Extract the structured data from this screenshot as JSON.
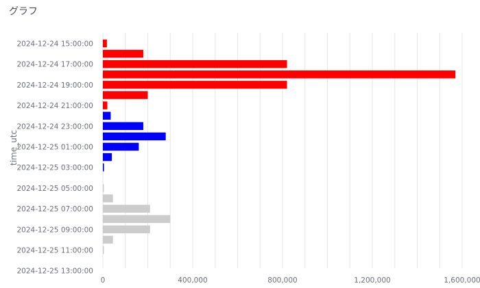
{
  "panel": {
    "title": "グラフ"
  },
  "chart_data": {
    "type": "bar",
    "orientation": "horizontal",
    "ylabel": "time_utc",
    "xlabel": "",
    "xlim": [
      0,
      1600000
    ],
    "x_ticks": [
      {
        "value": 0,
        "label": "0"
      },
      {
        "value": 400000,
        "label": "400,000"
      },
      {
        "value": 800000,
        "label": "800,000"
      },
      {
        "value": 1200000,
        "label": "1,200,000"
      },
      {
        "value": 1600000,
        "label": "1,600,000"
      }
    ],
    "grid": true,
    "categories": [
      "2024-12-24 15:00:00",
      "2024-12-24 16:00:00",
      "2024-12-24 17:00:00",
      "2024-12-24 18:00:00",
      "2024-12-24 19:00:00",
      "2024-12-24 20:00:00",
      "2024-12-24 21:00:00",
      "2024-12-24 22:00:00",
      "2024-12-24 23:00:00",
      "2024-12-25 00:00:00",
      "2024-12-25 01:00:00",
      "2024-12-25 02:00:00",
      "2024-12-25 03:00:00",
      "2024-12-25 04:00:00",
      "2024-12-25 05:00:00",
      "2024-12-25 06:00:00",
      "2024-12-25 07:00:00",
      "2024-12-25 08:00:00",
      "2024-12-25 09:00:00",
      "2024-12-25 10:00:00",
      "2024-12-25 11:00:00",
      "2024-12-25 12:00:00",
      "2024-12-25 13:00:00"
    ],
    "tick_labels": [
      "2024-12-24 15:00:00",
      "2024-12-24 17:00:00",
      "2024-12-24 19:00:00",
      "2024-12-24 21:00:00",
      "2024-12-24 23:00:00",
      "2024-12-25 01:00:00",
      "2024-12-25 03:00:00",
      "2024-12-25 05:00:00",
      "2024-12-25 07:00:00",
      "2024-12-25 09:00:00",
      "2024-12-25 11:00:00",
      "2024-12-25 13:00:00"
    ],
    "values": [
      18000,
      180000,
      820000,
      1570000,
      820000,
      200000,
      20000,
      35000,
      180000,
      280000,
      160000,
      40000,
      5000,
      0,
      3000,
      45000,
      210000,
      300000,
      210000,
      45000,
      3000,
      0,
      0
    ],
    "bar_colors": [
      "#ff0000",
      "#ff0000",
      "#ff0000",
      "#ff0000",
      "#ff0000",
      "#ff0000",
      "#ff0000",
      "#0000ff",
      "#0000ff",
      "#0000ff",
      "#0000ff",
      "#0000ff",
      "#0000ff",
      "#cccccc",
      "#cccccc",
      "#cccccc",
      "#cccccc",
      "#cccccc",
      "#cccccc",
      "#cccccc",
      "#cccccc",
      "#cccccc",
      "#cccccc"
    ]
  }
}
